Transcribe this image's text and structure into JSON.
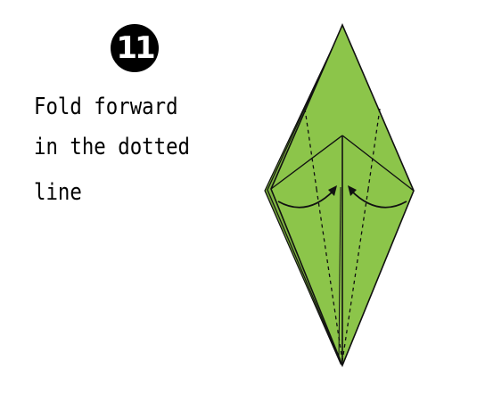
{
  "step": {
    "number": "11"
  },
  "instruction": {
    "line1": "Fold forward",
    "line2": "in the dotted",
    "line3": "line"
  },
  "diagram": {
    "paper_color": "#8cc54a",
    "paper_shadow_color": "#6e9e36",
    "outline_color": "#111111"
  }
}
